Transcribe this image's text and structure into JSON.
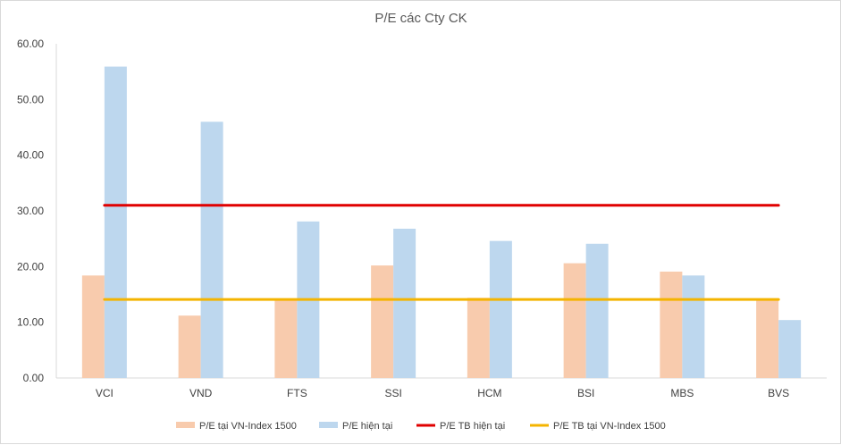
{
  "chart_data": {
    "type": "bar",
    "title": "P/E các Cty CK",
    "categories": [
      "VCI",
      "VND",
      "FTS",
      "SSI",
      "HCM",
      "BSI",
      "MBS",
      "BVS"
    ],
    "series": [
      {
        "name": "P/E tại VN-Index 1500",
        "kind": "bar",
        "color": "#F8CBAD",
        "values": [
          18.4,
          11.2,
          14.0,
          20.2,
          14.4,
          20.6,
          19.1,
          14.0
        ]
      },
      {
        "name": "P/E hiện tại",
        "kind": "bar",
        "color": "#BDD7EE",
        "values": [
          55.9,
          46.0,
          28.1,
          26.8,
          24.6,
          24.1,
          18.4,
          10.4
        ]
      },
      {
        "name": "P/E TB hiện tại",
        "kind": "line",
        "color": "#E00000",
        "values": [
          31.0,
          31.0,
          31.0,
          31.0,
          31.0,
          31.0,
          31.0,
          31.0
        ]
      },
      {
        "name": "P/E TB tại VN-Index 1500",
        "kind": "line",
        "color": "#F4B400",
        "values": [
          14.1,
          14.1,
          14.1,
          14.1,
          14.1,
          14.1,
          14.1,
          14.1
        ]
      }
    ],
    "y_ticks": [
      "0.00",
      "10.00",
      "20.00",
      "30.00",
      "40.00",
      "50.00",
      "60.00"
    ],
    "ylim": [
      0,
      60
    ],
    "xlabel": "",
    "ylabel": "",
    "grid": false,
    "legend_position": "bottom"
  }
}
